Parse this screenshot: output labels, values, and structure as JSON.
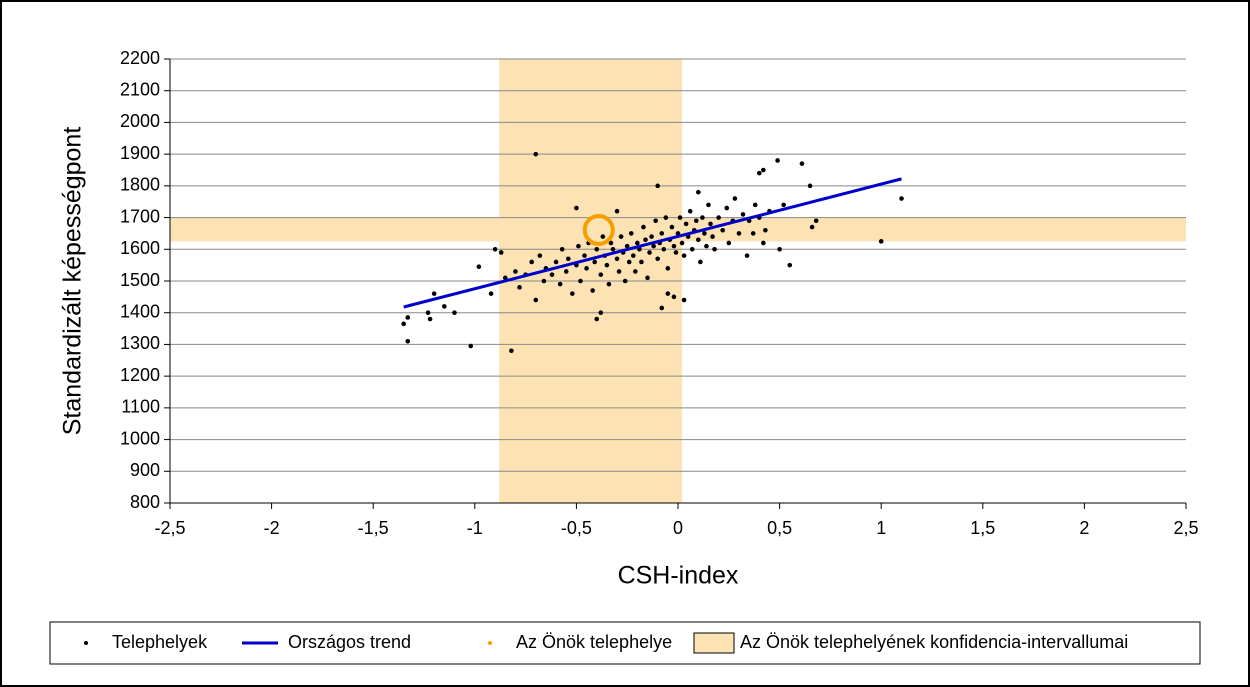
{
  "chart_data": {
    "type": "scatter",
    "xlabel": "CSH-index",
    "ylabel": "Standardizált képességpont",
    "xlim": [
      -2.5,
      2.5
    ],
    "xticks": [
      {
        "value": -2.5,
        "label": "-2,5"
      },
      -2,
      {
        "value": -1.5,
        "label": "-1,5"
      },
      -1,
      {
        "value": -0.5,
        "label": "-0,5"
      },
      0,
      {
        "value": 0.5,
        "label": "0,5"
      },
      1,
      {
        "value": 1.5,
        "label": "1,5"
      },
      2,
      {
        "value": 2.5,
        "label": "2,5"
      }
    ],
    "ylim": [
      800,
      2200
    ],
    "yticks": [
      800,
      900,
      1000,
      1100,
      1200,
      1300,
      1400,
      1500,
      1600,
      1700,
      1800,
      1900,
      2000,
      2100,
      2200
    ],
    "grid": true,
    "band": {
      "name": "Az Önök telephelyének konfidencia-intervallumai",
      "color": "#fde3b4",
      "x_interval": [
        -0.88,
        0.02
      ],
      "y_interval": [
        1625,
        1700
      ]
    },
    "series": [
      {
        "name": "Telephelyek",
        "kind": "points",
        "color": "#000000",
        "x": [
          -0.85,
          -0.8,
          -0.78,
          -0.75,
          -0.72,
          -0.7,
          -0.68,
          -0.66,
          -0.65,
          -0.62,
          -0.6,
          -0.58,
          -0.57,
          -0.55,
          -0.54,
          -0.52,
          -0.5,
          -0.49,
          -0.48,
          -0.46,
          -0.45,
          -0.44,
          -0.42,
          -0.41,
          -0.4,
          -0.38,
          -0.37,
          -0.36,
          -0.35,
          -0.34,
          -0.33,
          -0.32,
          -0.3,
          -0.29,
          -0.28,
          -0.27,
          -0.26,
          -0.25,
          -0.24,
          -0.23,
          -0.22,
          -0.21,
          -0.2,
          -0.19,
          -0.18,
          -0.17,
          -0.16,
          -0.15,
          -0.14,
          -0.13,
          -0.12,
          -0.11,
          -0.1,
          -0.09,
          -0.08,
          -0.07,
          -0.06,
          -0.05,
          -0.04,
          -0.03,
          -0.02,
          -0.01,
          0.0,
          0.01,
          0.02,
          0.03,
          0.04,
          0.05,
          0.06,
          0.07,
          0.08,
          0.09,
          0.1,
          0.11,
          0.12,
          0.13,
          0.14,
          0.15,
          0.16,
          0.17,
          0.18,
          0.2,
          0.22,
          0.24,
          0.25,
          0.27,
          0.28,
          0.3,
          0.32,
          0.34,
          0.35,
          0.37,
          0.38,
          0.4,
          0.43,
          0.45,
          -0.7,
          -1.33,
          -1.35,
          -1.33,
          -1.02,
          -0.82,
          1.0,
          1.1,
          0.49,
          0.61,
          0.65,
          -1.2,
          -1.23,
          -1.22,
          -1.15,
          -1.1,
          -0.92,
          -0.9,
          -0.98,
          -0.87,
          -0.4,
          -0.38,
          -0.08,
          -0.05,
          -0.02,
          0.03,
          0.55,
          0.5,
          0.42,
          0.52,
          0.68,
          0.66,
          -0.5,
          -0.3,
          -0.1,
          0.1,
          0.4,
          0.42
        ],
        "y": [
          1510,
          1530,
          1480,
          1520,
          1560,
          1440,
          1580,
          1500,
          1540,
          1520,
          1560,
          1490,
          1600,
          1530,
          1570,
          1460,
          1550,
          1610,
          1500,
          1580,
          1540,
          1620,
          1470,
          1560,
          1600,
          1520,
          1640,
          1580,
          1550,
          1490,
          1620,
          1600,
          1570,
          1530,
          1640,
          1590,
          1500,
          1610,
          1560,
          1650,
          1580,
          1530,
          1620,
          1600,
          1560,
          1670,
          1630,
          1510,
          1590,
          1640,
          1610,
          1690,
          1570,
          1620,
          1650,
          1600,
          1700,
          1540,
          1630,
          1670,
          1610,
          1590,
          1650,
          1700,
          1620,
          1580,
          1680,
          1640,
          1720,
          1600,
          1660,
          1690,
          1630,
          1560,
          1700,
          1650,
          1610,
          1740,
          1680,
          1640,
          1600,
          1700,
          1660,
          1730,
          1620,
          1690,
          1760,
          1650,
          1710,
          1580,
          1690,
          1650,
          1740,
          1700,
          1660,
          1720,
          1900,
          1310,
          1365,
          1385,
          1295,
          1280,
          1625,
          1760,
          1880,
          1870,
          1800,
          1460,
          1400,
          1380,
          1420,
          1400,
          1460,
          1600,
          1545,
          1590,
          1380,
          1400,
          1415,
          1460,
          1450,
          1440,
          1550,
          1600,
          1620,
          1740,
          1690,
          1670,
          1730,
          1720,
          1800,
          1780,
          1840,
          1850
        ]
      },
      {
        "name": "Országos trend",
        "kind": "line",
        "color": "#0000cc",
        "x": [
          -1.35,
          1.1
        ],
        "y": [
          1418,
          1822
        ]
      },
      {
        "name": "Az Önök telephelye",
        "kind": "ring",
        "color": "#f5a000",
        "x": [
          -0.39
        ],
        "y": [
          1661
        ]
      }
    ]
  }
}
